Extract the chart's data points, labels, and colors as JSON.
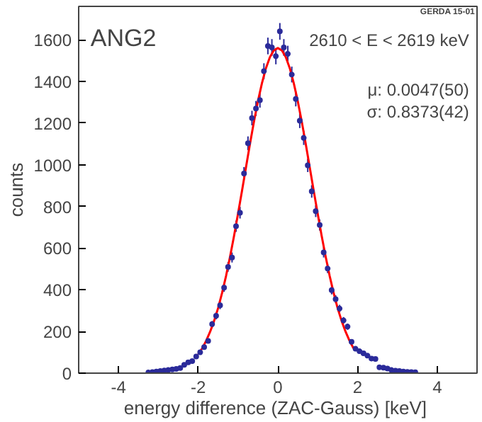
{
  "chart_data": {
    "type": "scatter",
    "xlabel": "energy difference (ZAC-Gauss)  [keV]",
    "ylabel": "counts",
    "annotations": [
      "ANG2",
      "2610 < E < 2619 keV",
      "μ: 0.0047(50)",
      "σ: 0.8373(42)",
      "GERDA 15-01"
    ],
    "xlim": [
      -5,
      5
    ],
    "ylim": [
      0,
      1760
    ],
    "xticks": [
      -4,
      -2,
      0,
      2,
      4
    ],
    "yticks": [
      0,
      200,
      400,
      600,
      800,
      1000,
      1200,
      1400,
      1600
    ],
    "grid": false,
    "marker": "circle",
    "series": [
      {
        "color": "#2b2b9a",
        "x": [
          -3.25,
          -3.15,
          -3.05,
          -2.95,
          -2.85,
          -2.75,
          -2.65,
          -2.55,
          -2.45,
          -2.35,
          -2.25,
          -2.15,
          -2.05,
          -1.95,
          -1.85,
          -1.75,
          -1.65,
          -1.55,
          -1.45,
          -1.35,
          -1.25,
          -1.15,
          -1.05,
          -0.95,
          -0.85,
          -0.75,
          -0.65,
          -0.55,
          -0.45,
          -0.35,
          -0.25,
          -0.15,
          -0.05,
          0.05,
          0.15,
          0.25,
          0.35,
          0.45,
          0.55,
          0.65,
          0.75,
          0.85,
          0.95,
          1.05,
          1.15,
          1.25,
          1.35,
          1.45,
          1.55,
          1.65,
          1.75,
          1.85,
          1.95,
          2.05,
          2.15,
          2.25,
          2.35,
          2.45,
          2.55,
          2.65,
          2.75,
          2.85,
          2.95,
          3.05,
          3.15,
          3.25,
          3.35,
          3.45
        ],
        "values": [
          3,
          5,
          8,
          10,
          13,
          15,
          18,
          20,
          25,
          40,
          52,
          58,
          80,
          100,
          125,
          155,
          235,
          275,
          325,
          410,
          510,
          555,
          705,
          770,
          958,
          1103,
          1224,
          1270,
          1310,
          1449,
          1570,
          1563,
          1521,
          1640,
          1563,
          1532,
          1433,
          1316,
          1211,
          1129,
          997,
          872,
          777,
          711,
          579,
          502,
          398,
          355,
          310,
          253,
          223,
          150,
          117,
          105,
          95,
          84,
          70,
          68,
          28,
          26,
          22,
          15,
          12,
          10,
          8,
          6,
          5,
          4
        ],
        "errors": [
          2,
          2,
          3,
          3,
          4,
          4,
          4,
          4,
          5,
          6,
          7,
          8,
          9,
          10,
          11,
          12,
          15,
          17,
          18,
          20,
          23,
          24,
          27,
          28,
          31,
          33,
          35,
          36,
          36,
          38,
          40,
          40,
          39,
          40,
          40,
          39,
          38,
          36,
          35,
          34,
          32,
          30,
          28,
          27,
          24,
          22,
          20,
          19,
          18,
          16,
          15,
          12,
          11,
          10,
          10,
          9,
          8,
          8,
          5,
          5,
          5,
          4,
          3,
          3,
          3,
          2,
          2,
          2
        ],
        "xerrors": [
          0.05,
          0.05,
          0.05,
          0.05,
          0.05,
          0.05,
          0.05,
          0.05,
          0.05,
          0.05,
          0.05,
          0.05,
          0.05,
          0.05,
          0.05,
          0.05,
          0.05,
          0.05,
          0.05,
          0.05,
          0.05,
          0.05,
          0.05,
          0.05,
          0.05,
          0.05,
          0.05,
          0.05,
          0.05,
          0.05,
          0.05,
          0.05,
          0.05,
          0.05,
          0.05,
          0.05,
          0.05,
          0.05,
          0.05,
          0.05,
          0.05,
          0.05,
          0.05,
          0.05,
          0.05,
          0.05,
          0.05,
          0.05,
          0.05,
          0.05,
          0.05,
          0.05,
          0.05,
          0.05,
          0.05,
          0.05,
          0.05,
          0.05,
          0.05,
          0.05,
          0.05,
          0.05,
          0.05,
          0.05,
          0.05,
          0.05,
          0.05,
          0.05
        ]
      },
      {
        "type": "line",
        "color": "#ff0000",
        "line_style": "solid",
        "marker": "none",
        "x": [
          -2.0,
          -1.9,
          -1.8,
          -1.7,
          -1.6,
          -1.5,
          -1.4,
          -1.3,
          -1.2,
          -1.1,
          -1.0,
          -0.9,
          -0.8,
          -0.7,
          -0.6,
          -0.5,
          -0.4,
          -0.3,
          -0.2,
          -0.1,
          0.0,
          0.1,
          0.2,
          0.3,
          0.4,
          0.5,
          0.6,
          0.7,
          0.8,
          0.9,
          1.0,
          1.1,
          1.2,
          1.3,
          1.4,
          1.5,
          1.6,
          1.7,
          1.8,
          1.9
        ],
        "values": [
          90,
          119,
          155,
          199,
          251,
          312,
          385,
          467,
          559,
          658,
          765,
          875,
          988,
          1100,
          1207,
          1305,
          1391,
          1463,
          1516,
          1549,
          1560,
          1549,
          1516,
          1463,
          1391,
          1305,
          1207,
          1100,
          988,
          875,
          765,
          658,
          559,
          467,
          385,
          312,
          251,
          199,
          155,
          119
        ]
      }
    ]
  }
}
